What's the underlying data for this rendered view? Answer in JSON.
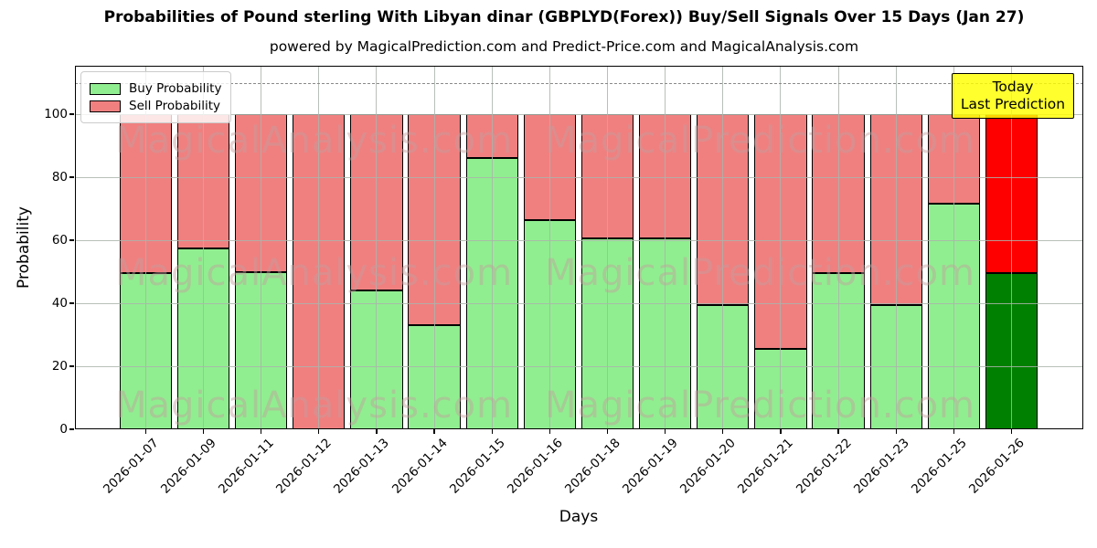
{
  "header": {
    "title": "Probabilities of Pound sterling With Libyan dinar (GBPLYD(Forex)) Buy/Sell Signals Over 15 Days (Jan 27)",
    "subtitle": "powered by MagicalPrediction.com and Predict-Price.com and MagicalAnalysis.com"
  },
  "legend": {
    "items": [
      {
        "label": "Buy Probability",
        "color": "#90EE90"
      },
      {
        "label": "Sell Probability",
        "color": "#F08080"
      }
    ]
  },
  "annotation": {
    "line1": "Today",
    "line2": "Last Prediction",
    "bg_color": "#FFFF00"
  },
  "watermarks": {
    "left_text": "MagicalAnalysis.com",
    "right_text": "MagicalPrediction.com"
  },
  "axes": {
    "xlabel": "Days",
    "ylabel": "Probability",
    "yticks": [
      0,
      20,
      40,
      60,
      80,
      100
    ],
    "ylim": [
      0,
      115.4
    ],
    "dashed_reference_line": 110,
    "grid": true
  },
  "chart_data": {
    "type": "bar",
    "stacked": true,
    "title": "Probabilities of Pound sterling With Libyan dinar (GBPLYD(Forex)) Buy/Sell Signals Over 15 Days (Jan 27)",
    "xlabel": "Days",
    "ylabel": "Probability",
    "ylim": [
      0,
      115.4
    ],
    "grid": true,
    "legend_position": "upper left",
    "categories": [
      "2026-01-07",
      "2026-01-09",
      "2026-01-11",
      "2026-01-12",
      "2026-01-13",
      "2026-01-14",
      "2026-01-15",
      "2026-01-16",
      "2026-01-18",
      "2026-01-19",
      "2026-01-20",
      "2026-01-21",
      "2026-01-22",
      "2026-01-23",
      "2026-01-25",
      "2026-01-26"
    ],
    "series": [
      {
        "name": "Buy Probability",
        "color": "#90EE90",
        "last_bar_color": "#008000",
        "values": [
          49.5,
          57.5,
          50,
          0,
          44,
          33,
          86,
          66.5,
          60.5,
          60.5,
          39.5,
          25.5,
          49.5,
          39.5,
          71.5,
          49.5
        ]
      },
      {
        "name": "Sell Probability",
        "color": "#F08080",
        "last_bar_color": "#FF0000",
        "values": [
          50.5,
          42.5,
          50,
          100,
          56,
          67,
          14,
          33.5,
          39.5,
          39.5,
          60.5,
          74.5,
          50.5,
          60.5,
          28.5,
          50.5
        ]
      }
    ],
    "annotation_on_last_bar": "Today Last Prediction",
    "dashed_reference_line": 110
  }
}
